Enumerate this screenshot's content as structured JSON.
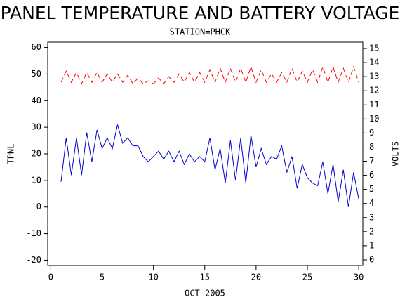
{
  "chart_data": {
    "type": "line",
    "title": "PANEL TEMPERATURE AND BATTERY VOLTAGE",
    "subtitle": "STATION=PHCK",
    "x_label": "OCT 2005",
    "y_label": "TPNL",
    "y2_label": "VOLTS",
    "x": [
      1,
      1.5,
      2,
      2.5,
      3,
      3.5,
      4,
      4.5,
      5,
      5.5,
      6,
      6.5,
      7,
      7.5,
      8,
      8.5,
      9,
      9.5,
      10,
      10.5,
      11,
      11.5,
      12,
      12.5,
      13,
      13.5,
      14,
      14.5,
      15,
      15.5,
      16,
      16.5,
      17,
      17.5,
      18,
      18.5,
      19,
      19.5,
      20,
      20.5,
      21,
      21.5,
      22,
      22.5,
      23,
      23.5,
      24,
      24.5,
      25,
      25.5,
      26,
      26.5,
      27,
      27.5,
      28,
      28.5,
      29,
      29.5,
      30
    ],
    "series": [
      {
        "name": "TPNL",
        "color": "#0000cc",
        "axis": "y",
        "dashed": false,
        "values": [
          9.5,
          26,
          12,
          26,
          12,
          28,
          17,
          29,
          22,
          26,
          22,
          31,
          24,
          26,
          23,
          23,
          19,
          17,
          19,
          21,
          18,
          21,
          17,
          21,
          16,
          20,
          17,
          19,
          17,
          26,
          14,
          22,
          9,
          25,
          10,
          26,
          9,
          27,
          15,
          22,
          16,
          19,
          18,
          23,
          13,
          19,
          7,
          16,
          11,
          9,
          8,
          17,
          5,
          16,
          2,
          14,
          0,
          13,
          3
        ]
      },
      {
        "name": "VOLTS",
        "color": "#ff0000",
        "axis": "y2",
        "dashed": true,
        "values": [
          12.6,
          13.4,
          12.6,
          13.3,
          12.5,
          13.3,
          12.6,
          13.3,
          12.6,
          13.2,
          12.6,
          13.2,
          12.6,
          13.1,
          12.5,
          12.9,
          12.5,
          12.7,
          12.5,
          12.9,
          12.5,
          13.0,
          12.6,
          13.2,
          12.6,
          13.3,
          12.6,
          13.3,
          12.6,
          13.5,
          12.6,
          13.6,
          12.6,
          13.6,
          12.6,
          13.6,
          12.6,
          13.7,
          12.6,
          13.5,
          12.6,
          13.2,
          12.6,
          13.3,
          12.6,
          13.6,
          12.6,
          13.4,
          12.6,
          13.5,
          12.6,
          13.7,
          12.6,
          13.7,
          12.6,
          13.6,
          12.6,
          13.7,
          12.6
        ]
      }
    ],
    "xlim": [
      -0.3,
      30.4
    ],
    "xticks": [
      0,
      5,
      10,
      15,
      20,
      25,
      30
    ],
    "ylim": [
      -22,
      62
    ],
    "yticks": [
      -20,
      -10,
      0,
      10,
      20,
      30,
      40,
      50,
      60
    ],
    "y2lim": [
      -0.4,
      15.45
    ],
    "y2ticks": [
      0,
      1,
      2,
      3,
      4,
      5,
      6,
      7,
      8,
      9,
      10,
      11,
      12,
      13,
      14,
      15
    ]
  }
}
